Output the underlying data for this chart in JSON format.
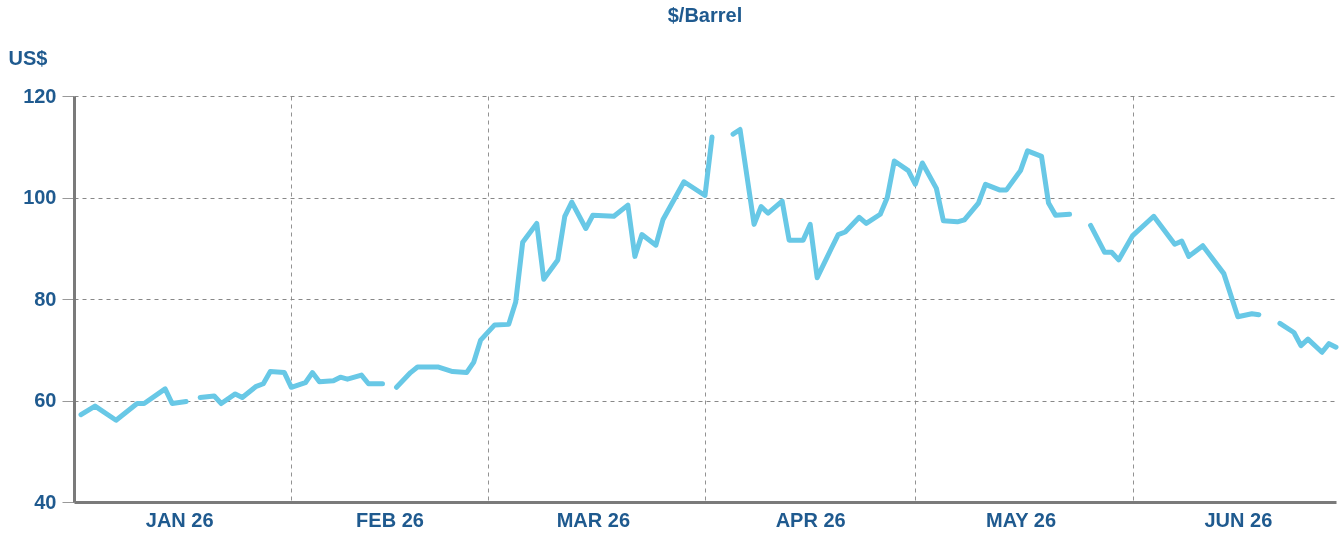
{
  "chart_data": {
    "type": "line",
    "title": "$/Barrel",
    "ylabel": "US$",
    "ylim": [
      40,
      120
    ],
    "yticks": [
      40,
      60,
      80,
      100,
      120
    ],
    "xlim": [
      "2026-01-01",
      "2026-06-30"
    ],
    "xticks": [
      {
        "value": "2026-01-16",
        "label": "JAN 26"
      },
      {
        "value": "2026-02-01",
        "label": null
      },
      {
        "value": "2026-02-15",
        "label": "FEB 26"
      },
      {
        "value": "2026-03-01",
        "label": null
      },
      {
        "value": "2026-03-16",
        "label": "MAR 26"
      },
      {
        "value": "2026-04-01",
        "label": null
      },
      {
        "value": "2026-04-16",
        "label": "APR 26"
      },
      {
        "value": "2026-05-01",
        "label": null
      },
      {
        "value": "2026-05-16",
        "label": "MAY 26"
      },
      {
        "value": "2026-06-01",
        "label": null
      },
      {
        "value": "2026-06-16",
        "label": "JUN 26"
      }
    ],
    "grid": true,
    "line_style": "solid",
    "series": [
      {
        "color": "#68c8e6",
        "x": [
          "2026-01-02",
          "2026-01-04",
          "2026-01-07",
          "2026-01-10",
          "2026-01-11",
          "2026-01-14",
          "2026-01-15",
          "2026-01-17",
          "2026-01-18",
          "2026-01-19",
          "2026-01-21",
          "2026-01-22",
          "2026-01-24",
          "2026-01-25",
          "2026-01-27",
          "2026-01-28",
          "2026-01-29",
          "2026-01-31",
          "2026-02-01",
          "2026-02-03",
          "2026-02-04",
          "2026-02-05",
          "2026-02-07",
          "2026-02-08",
          "2026-02-09",
          "2026-02-11",
          "2026-02-12",
          "2026-02-14",
          "2026-02-15",
          "2026-02-16",
          "2026-02-18",
          "2026-02-19",
          "2026-02-22",
          "2026-02-24",
          "2026-02-26",
          "2026-02-27",
          "2026-02-28",
          "2026-03-02",
          "2026-03-04",
          "2026-03-05",
          "2026-03-06",
          "2026-03-08",
          "2026-03-09",
          "2026-03-11",
          "2026-03-12",
          "2026-03-13",
          "2026-03-15",
          "2026-03-16",
          "2026-03-19",
          "2026-03-21",
          "2026-03-22",
          "2026-03-23",
          "2026-03-25",
          "2026-03-26",
          "2026-03-29",
          "2026-04-01",
          "2026-04-02",
          "2026-04-03",
          "2026-04-05",
          "2026-04-06",
          "2026-04-08",
          "2026-04-09",
          "2026-04-10",
          "2026-04-12",
          "2026-04-13",
          "2026-04-15",
          "2026-04-16",
          "2026-04-17",
          "2026-04-19",
          "2026-04-20",
          "2026-04-21",
          "2026-04-23",
          "2026-04-24",
          "2026-04-26",
          "2026-04-27",
          "2026-04-28",
          "2026-04-30",
          "2026-05-01",
          "2026-05-02",
          "2026-05-04",
          "2026-05-05",
          "2026-05-07",
          "2026-05-08",
          "2026-05-10",
          "2026-05-11",
          "2026-05-13",
          "2026-05-14",
          "2026-05-16",
          "2026-05-17",
          "2026-05-19",
          "2026-05-20",
          "2026-05-21",
          "2026-05-23",
          "2026-05-25",
          "2026-05-26",
          "2026-05-28",
          "2026-05-29",
          "2026-05-30",
          "2026-06-01",
          "2026-06-04",
          "2026-06-07",
          "2026-06-08",
          "2026-06-09",
          "2026-06-11",
          "2026-06-14",
          "2026-06-16",
          "2026-06-18",
          "2026-06-19",
          "2026-06-20",
          "2026-06-22",
          "2026-06-24",
          "2026-06-25",
          "2026-06-26",
          "2026-06-28",
          "2026-06-29",
          "2026-06-30"
        ],
        "values": [
          57.2,
          58.9,
          56.1,
          59.4,
          59.4,
          62.3,
          59.4,
          59.8,
          null,
          60.6,
          60.9,
          59.4,
          61.3,
          60.6,
          62.8,
          63.3,
          65.7,
          65.5,
          62.6,
          63.5,
          65.5,
          63.7,
          63.9,
          64.6,
          64.2,
          65.0,
          63.3,
          63.3,
          null,
          62.6,
          65.5,
          66.6,
          66.6,
          65.7,
          65.5,
          67.5,
          71.9,
          74.9,
          75.0,
          79.4,
          91.2,
          94.9,
          83.9,
          87.7,
          96.3,
          99.1,
          93.9,
          96.5,
          96.3,
          98.5,
          88.4,
          92.7,
          90.6,
          95.6,
          103.1,
          100.4,
          111.9,
          null,
          112.5,
          113.4,
          94.7,
          98.2,
          96.9,
          99.3,
          91.6,
          91.6,
          94.7,
          84.2,
          89.9,
          92.7,
          93.2,
          96.1,
          94.9,
          96.7,
          100.0,
          107.2,
          105.3,
          102.6,
          106.8,
          101.8,
          95.4,
          95.2,
          95.6,
          98.9,
          102.6,
          101.5,
          101.5,
          105.3,
          109.2,
          108.1,
          98.9,
          96.5,
          96.7,
          null,
          94.5,
          89.2,
          89.2,
          87.7,
          92.5,
          96.3,
          90.8,
          91.4,
          88.4,
          90.5,
          85.0,
          76.5,
          77.1,
          76.9,
          null,
          75.2,
          73.4,
          70.8,
          72.1,
          69.5,
          71.2,
          70.5
        ]
      }
    ]
  }
}
